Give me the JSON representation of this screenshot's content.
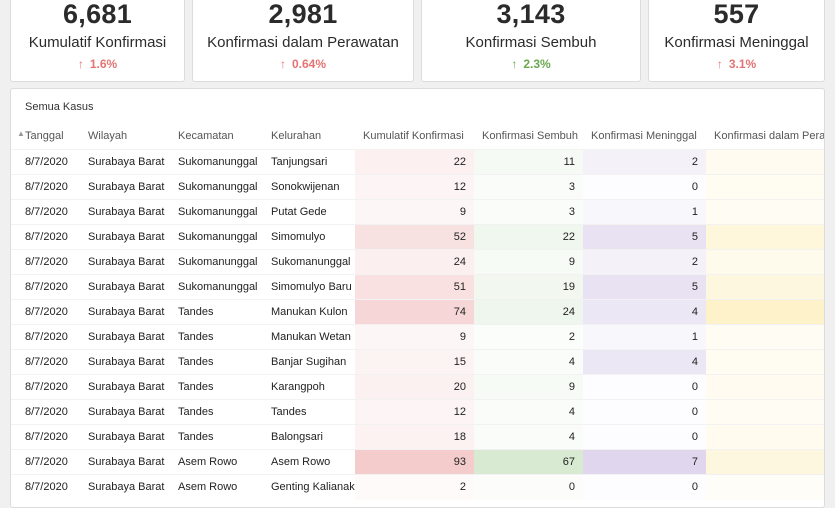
{
  "cards": [
    {
      "value": "6,681",
      "label": "Kumulatif Konfirmasi",
      "delta": "1.6%",
      "trend": "up-red"
    },
    {
      "value": "2,981",
      "label": "Konfirmasi dalam Perawatan",
      "delta": "0.64%",
      "trend": "up-red"
    },
    {
      "value": "3,143",
      "label": "Konfirmasi Sembuh",
      "delta": "2.3%",
      "trend": "up-green"
    },
    {
      "value": "557",
      "label": "Konfirmasi Meninggal",
      "delta": "3.1%",
      "trend": "up-red"
    }
  ],
  "table": {
    "title": "Semua Kasus",
    "columns": [
      "Tanggal",
      "Wilayah",
      "Kecamatan",
      "Kelurahan",
      "Kumulatif Konfirmasi",
      "Konfirmasi Sembuh",
      "Konfirmasi Meninggal",
      "Konfirmasi dalam Perawatan"
    ],
    "heat_colors": {
      "kumulatif": "#f4cccc",
      "sembuh": "#d9ead3",
      "meninggal": "#e0d7ee",
      "perawatan": "#fdeeb9"
    },
    "heat_max": {
      "kumulatif": 93,
      "sembuh": 67,
      "meninggal": 7,
      "perawatan": 1
    },
    "rows": [
      {
        "tanggal": "8/7/2020",
        "wilayah": "Surabaya Barat",
        "kecamatan": "Sukomanunggal",
        "kelurahan": "Tanjungsari",
        "kumulatif": "22",
        "sembuh": "11",
        "meninggal": "2",
        "perawatan_level": 0.15
      },
      {
        "tanggal": "8/7/2020",
        "wilayah": "Surabaya Barat",
        "kecamatan": "Sukomanunggal",
        "kelurahan": "Sonokwijenan",
        "kumulatif": "12",
        "sembuh": "3",
        "meninggal": "0",
        "perawatan_level": 0.12
      },
      {
        "tanggal": "8/7/2020",
        "wilayah": "Surabaya Barat",
        "kecamatan": "Sukomanunggal",
        "kelurahan": "Putat Gede",
        "kumulatif": "9",
        "sembuh": "3",
        "meninggal": "1",
        "perawatan_level": 0.08
      },
      {
        "tanggal": "8/7/2020",
        "wilayah": "Surabaya Barat",
        "kecamatan": "Sukomanunggal",
        "kelurahan": "Simomulyo",
        "kumulatif": "52",
        "sembuh": "22",
        "meninggal": "5",
        "perawatan_level": 0.45
      },
      {
        "tanggal": "8/7/2020",
        "wilayah": "Surabaya Barat",
        "kecamatan": "Sukomanunggal",
        "kelurahan": "Sukomanunggal",
        "kumulatif": "24",
        "sembuh": "9",
        "meninggal": "2",
        "perawatan_level": 0.2
      },
      {
        "tanggal": "8/7/2020",
        "wilayah": "Surabaya Barat",
        "kecamatan": "Sukomanunggal",
        "kelurahan": "Simomulyo Baru",
        "kumulatif": "51",
        "sembuh": "19",
        "meninggal": "5",
        "perawatan_level": 0.4
      },
      {
        "tanggal": "8/7/2020",
        "wilayah": "Surabaya Barat",
        "kecamatan": "Tandes",
        "kelurahan": "Manukan Kulon",
        "kumulatif": "74",
        "sembuh": "24",
        "meninggal": "4",
        "perawatan_level": 0.75
      },
      {
        "tanggal": "8/7/2020",
        "wilayah": "Surabaya Barat",
        "kecamatan": "Tandes",
        "kelurahan": "Manukan Wetan",
        "kumulatif": "9",
        "sembuh": "2",
        "meninggal": "1",
        "perawatan_level": 0.1
      },
      {
        "tanggal": "8/7/2020",
        "wilayah": "Surabaya Barat",
        "kecamatan": "Tandes",
        "kelurahan": "Banjar Sugihan",
        "kumulatif": "15",
        "sembuh": "4",
        "meninggal": "4",
        "perawatan_level": 0.12
      },
      {
        "tanggal": "8/7/2020",
        "wilayah": "Surabaya Barat",
        "kecamatan": "Tandes",
        "kelurahan": "Karangpoh",
        "kumulatif": "20",
        "sembuh": "9",
        "meninggal": "0",
        "perawatan_level": 0.15
      },
      {
        "tanggal": "8/7/2020",
        "wilayah": "Surabaya Barat",
        "kecamatan": "Tandes",
        "kelurahan": "Tandes",
        "kumulatif": "12",
        "sembuh": "4",
        "meninggal": "0",
        "perawatan_level": 0.1
      },
      {
        "tanggal": "8/7/2020",
        "wilayah": "Surabaya Barat",
        "kecamatan": "Tandes",
        "kelurahan": "Balongsari",
        "kumulatif": "18",
        "sembuh": "4",
        "meninggal": "0",
        "perawatan_level": 0.18
      },
      {
        "tanggal": "8/7/2020",
        "wilayah": "Surabaya Barat",
        "kecamatan": "Asem Rowo",
        "kelurahan": "Asem Rowo",
        "kumulatif": "93",
        "sembuh": "67",
        "meninggal": "7",
        "perawatan_level": 0.4
      },
      {
        "tanggal": "8/7/2020",
        "wilayah": "Surabaya Barat",
        "kecamatan": "Asem Rowo",
        "kelurahan": "Genting Kalianak",
        "kumulatif": "2",
        "sembuh": "0",
        "meninggal": "0",
        "perawatan_level": 0.03
      }
    ]
  }
}
